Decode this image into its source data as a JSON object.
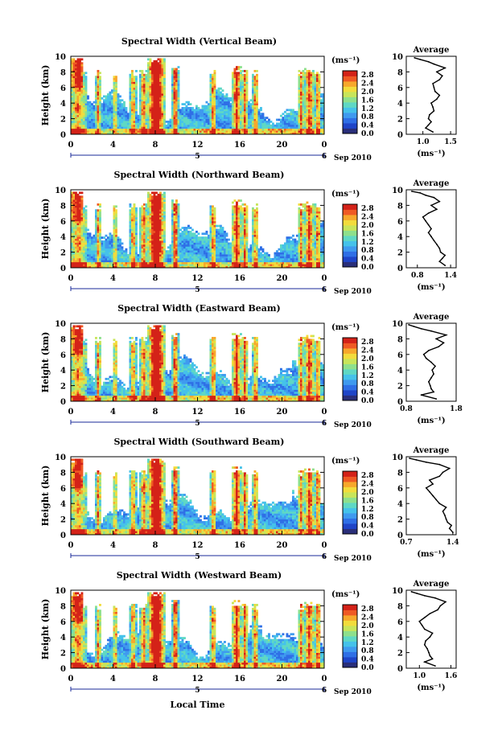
{
  "xlabel": "Local Time",
  "colorbar": {
    "unit": "(ms⁻¹)",
    "ticks": [
      "0.0",
      "0.4",
      "0.8",
      "1.2",
      "1.6",
      "2.0",
      "2.4",
      "2.8"
    ],
    "colors": [
      "#2a2f7a",
      "#1f45c8",
      "#2f6fe6",
      "#3f9aef",
      "#45c2ea",
      "#5fd8c4",
      "#8ee08c",
      "#c8e55a",
      "#f2dc3c",
      "#f7a82c",
      "#ef5a24",
      "#d42218"
    ]
  },
  "chart_data": [
    {
      "type": "heatmap",
      "title": "Spectral Width (Vertical Beam)",
      "ylabel": "Height (km)",
      "xlabel": "Local Time",
      "x_ticks": [
        "0",
        "4",
        "8",
        "12",
        "16",
        "20",
        "0"
      ],
      "y_ticks": [
        "0",
        "2",
        "4",
        "6",
        "8",
        "10"
      ],
      "xlim": [
        0,
        24
      ],
      "ylim": [
        0,
        10
      ],
      "date_labels": [
        "5",
        "6",
        "Sep 2010"
      ],
      "profile": {
        "title": "Average",
        "xlabel": "(ms⁻¹)",
        "x_ticks": [
          "1.0",
          "1.5"
        ],
        "xlim": [
          0.7,
          1.6
        ],
        "height": [
          0.3,
          0.8,
          1.2,
          1.6,
          2.0,
          2.5,
          3.0,
          3.5,
          4.0,
          4.5,
          5.0,
          5.5,
          6.0,
          6.5,
          7.0,
          7.5,
          8.0,
          8.5,
          9.0,
          9.3,
          9.6,
          9.8
        ],
        "value": [
          1.18,
          1.05,
          1.1,
          1.15,
          1.1,
          1.12,
          1.2,
          1.18,
          1.15,
          1.25,
          1.3,
          1.22,
          1.2,
          1.18,
          1.3,
          1.35,
          1.25,
          1.4,
          1.2,
          1.1,
          0.95,
          0.85
        ]
      }
    },
    {
      "type": "heatmap",
      "title": "Spectral Width (Northward Beam)",
      "ylabel": "Height (km)",
      "xlabel": "Local Time",
      "x_ticks": [
        "0",
        "4",
        "8",
        "12",
        "16",
        "20",
        "0"
      ],
      "y_ticks": [
        "0",
        "2",
        "4",
        "6",
        "8",
        "10"
      ],
      "xlim": [
        0,
        24
      ],
      "ylim": [
        0,
        10
      ],
      "date_labels": [
        "5",
        "6",
        "Sep 2010"
      ],
      "profile": {
        "title": "Average",
        "xlabel": "(ms⁻¹)",
        "x_ticks": [
          "0.8",
          "1.4"
        ],
        "xlim": [
          0.6,
          1.5
        ],
        "height": [
          0.3,
          0.8,
          1.2,
          1.6,
          2.0,
          2.5,
          3.0,
          3.5,
          4.0,
          4.5,
          5.0,
          5.5,
          6.0,
          6.5,
          7.0,
          7.5,
          8.0,
          8.5,
          9.0,
          9.3,
          9.6,
          9.8
        ],
        "value": [
          1.3,
          1.2,
          1.25,
          1.3,
          1.22,
          1.2,
          1.15,
          1.1,
          1.05,
          1.0,
          1.05,
          1.0,
          0.95,
          0.9,
          1.0,
          1.15,
          1.05,
          1.2,
          1.1,
          0.95,
          0.85,
          0.7
        ]
      }
    },
    {
      "type": "heatmap",
      "title": "Spectral Width (Eastward Beam)",
      "ylabel": "Height (km)",
      "xlabel": "Local Time",
      "x_ticks": [
        "0",
        "4",
        "8",
        "12",
        "16",
        "20",
        "0"
      ],
      "y_ticks": [
        "0",
        "2",
        "4",
        "6",
        "8",
        "10"
      ],
      "xlim": [
        0,
        24
      ],
      "ylim": [
        0,
        10
      ],
      "date_labels": [
        "5",
        "6",
        "Sep 2010"
      ],
      "profile": {
        "title": "Average",
        "xlabel": "(ms⁻¹)",
        "x_ticks": [
          "0.8",
          "1.8"
        ],
        "xlim": [
          0.8,
          1.8
        ],
        "height": [
          0.3,
          0.8,
          1.2,
          1.6,
          2.0,
          2.5,
          3.0,
          3.5,
          4.0,
          4.5,
          5.0,
          5.5,
          6.0,
          6.5,
          7.0,
          7.5,
          8.0,
          8.5,
          9.0,
          9.3,
          9.6,
          9.8
        ],
        "value": [
          1.4,
          1.1,
          1.35,
          1.3,
          1.28,
          1.25,
          1.3,
          1.35,
          1.32,
          1.38,
          1.3,
          1.2,
          1.15,
          1.25,
          1.45,
          1.55,
          1.4,
          1.6,
          1.3,
          1.1,
          0.95,
          0.85
        ]
      }
    },
    {
      "type": "heatmap",
      "title": "Spectral Width (Southward Beam)",
      "ylabel": "Height (km)",
      "xlabel": "Local Time",
      "x_ticks": [
        "0",
        "4",
        "8",
        "12",
        "16",
        "20",
        "0"
      ],
      "y_ticks": [
        "0",
        "2",
        "4",
        "6",
        "8",
        "10"
      ],
      "xlim": [
        0,
        24
      ],
      "ylim": [
        0,
        10
      ],
      "date_labels": [
        "5",
        "6",
        "Sep 2010"
      ],
      "profile": {
        "title": "Average",
        "xlabel": "(ms⁻¹)",
        "x_ticks": [
          "0.7",
          "1.4"
        ],
        "xlim": [
          0.7,
          1.45
        ],
        "height": [
          0.3,
          0.8,
          1.2,
          1.6,
          2.0,
          2.5,
          3.0,
          3.5,
          4.0,
          4.5,
          5.0,
          5.5,
          6.0,
          6.5,
          7.0,
          7.5,
          8.0,
          8.5,
          9.0,
          9.3,
          9.6,
          9.8
        ],
        "value": [
          1.4,
          1.35,
          1.38,
          1.32,
          1.3,
          1.28,
          1.25,
          1.3,
          1.2,
          1.15,
          1.1,
          1.05,
          1.0,
          1.1,
          1.05,
          1.2,
          1.25,
          1.35,
          1.2,
          1.0,
          0.85,
          0.75
        ]
      }
    },
    {
      "type": "heatmap",
      "title": "Spectral Width (Westward Beam)",
      "ylabel": "Height (km)",
      "xlabel": "Local Time",
      "x_ticks": [
        "0",
        "4",
        "8",
        "12",
        "16",
        "20",
        "0"
      ],
      "y_ticks": [
        "0",
        "2",
        "4",
        "6",
        "8",
        "10"
      ],
      "xlim": [
        0,
        24
      ],
      "ylim": [
        0,
        10
      ],
      "date_labels": [
        "5",
        "6",
        "Sep 2010"
      ],
      "profile": {
        "title": "Average",
        "xlabel": "(ms⁻¹)",
        "x_ticks": [
          "1.0",
          "1.6"
        ],
        "xlim": [
          0.75,
          1.7
        ],
        "height": [
          0.3,
          0.8,
          1.2,
          1.6,
          2.0,
          2.5,
          3.0,
          3.5,
          4.0,
          4.5,
          5.0,
          5.5,
          6.0,
          6.5,
          7.0,
          7.5,
          8.0,
          8.5,
          9.0,
          9.3,
          9.6,
          9.8
        ],
        "value": [
          1.3,
          1.1,
          1.25,
          1.2,
          1.18,
          1.15,
          1.1,
          1.12,
          1.2,
          1.25,
          1.1,
          1.05,
          1.0,
          1.1,
          1.2,
          1.35,
          1.4,
          1.5,
          1.3,
          1.1,
          0.95,
          0.85
        ]
      }
    }
  ]
}
